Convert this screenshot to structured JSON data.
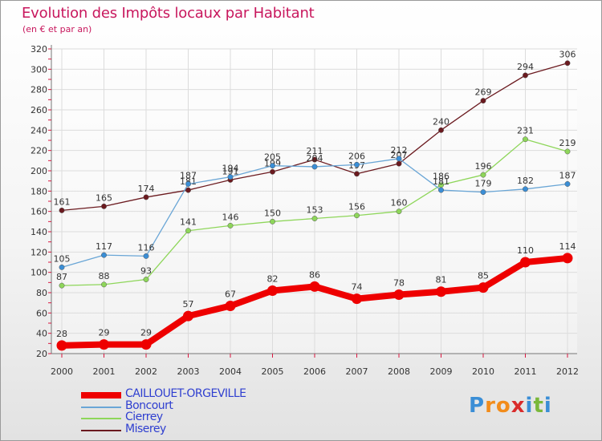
{
  "title": "Evolution des Impôts locaux par Habitant",
  "subtitle": "(en € et par an)",
  "logo": {
    "text": "Proxiti",
    "letters": [
      "P",
      "r",
      "o",
      "x",
      "i",
      "t",
      "i"
    ],
    "colors": [
      "#3a8ed6",
      "#f28c1a",
      "#f28c1a",
      "#d92b2b",
      "#3a8ed6",
      "#7ab83a",
      "#3a8ed6"
    ]
  },
  "chart_data": {
    "type": "line",
    "title": "Evolution des Impôts locaux par Habitant",
    "subtitle": "(en € et par an)",
    "xlabel": "",
    "ylabel": "",
    "ylim": [
      20,
      320
    ],
    "yticks": [
      20,
      40,
      60,
      80,
      100,
      120,
      140,
      160,
      180,
      200,
      220,
      240,
      260,
      280,
      300,
      320
    ],
    "x": [
      "2000",
      "2001",
      "2002",
      "2003",
      "2004",
      "2005",
      "2006",
      "2007",
      "2008",
      "2009",
      "2010",
      "2011",
      "2012"
    ],
    "grid": true,
    "legend_position": "bottom-left",
    "series": [
      {
        "name": "Miserey",
        "color": "#6b1a1f",
        "marker": "#6b1a1f",
        "weight": "thin",
        "values": [
          161,
          165,
          174,
          181,
          191,
          199,
          211,
          197,
          207,
          240,
          269,
          294,
          306
        ],
        "labels": [
          "161",
          "165",
          "174",
          "181",
          "191",
          "199",
          "211",
          "197",
          "207",
          "240",
          "269",
          "294",
          "306"
        ]
      },
      {
        "name": "Cierrey",
        "color": "#8ed65a",
        "marker": "#8ed65a",
        "weight": "thin",
        "values": [
          87,
          88,
          93,
          141,
          146,
          150,
          153,
          156,
          160,
          186,
          196,
          231,
          219
        ],
        "labels": [
          "87",
          "88",
          "93",
          "141",
          "146",
          "150",
          "153",
          "156",
          "160",
          "186",
          "196",
          "231",
          "219"
        ]
      },
      {
        "name": "Boncourt",
        "color": "#6aa6d6",
        "marker": "#3a8ed6",
        "weight": "thin",
        "values": [
          105,
          117,
          116,
          187,
          194,
          205,
          204,
          206,
          212,
          181,
          179,
          182,
          187
        ],
        "labels": [
          "105",
          "117",
          "116",
          "187",
          "194",
          "205",
          "204",
          "206",
          "212",
          "181",
          "179",
          "182",
          "187"
        ]
      },
      {
        "name": "CAILLOUET-ORGEVILLE",
        "color": "#ee0000",
        "marker": "#ee0000",
        "weight": "thick",
        "values": [
          28,
          29,
          29,
          57,
          67,
          82,
          86,
          74,
          78,
          81,
          85,
          110,
          114
        ],
        "labels": [
          "28",
          "29",
          "29",
          "57",
          "67",
          "82",
          "86",
          "74",
          "78",
          "81",
          "85",
          "110",
          "114"
        ]
      }
    ]
  },
  "legend": [
    {
      "name": "CAILLOUET-ORGEVILLE",
      "color": "#ee0000",
      "thick": true
    },
    {
      "name": "Boncourt",
      "color": "#6aa6d6",
      "thick": false
    },
    {
      "name": "Cierrey",
      "color": "#8ed65a",
      "thick": false
    },
    {
      "name": "Miserey",
      "color": "#6b1a1f",
      "thick": false
    }
  ]
}
